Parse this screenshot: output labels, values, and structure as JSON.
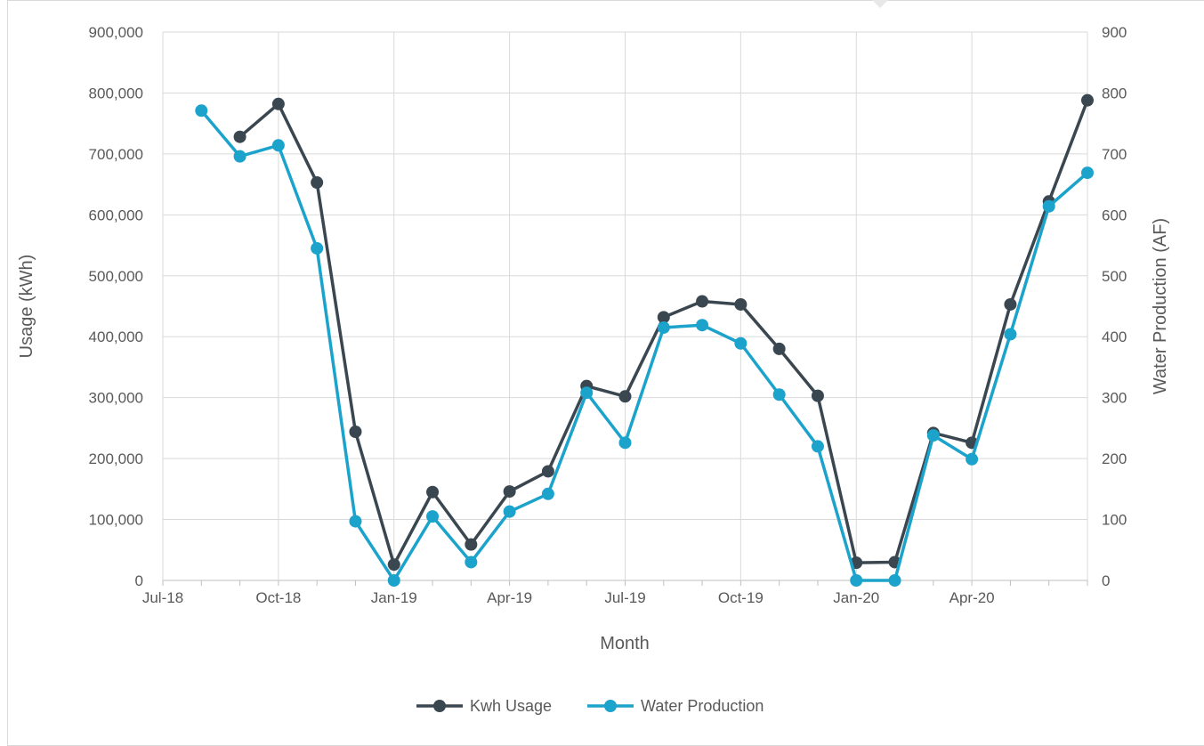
{
  "chart_data": {
    "type": "line",
    "title": "",
    "xlabel": "Month",
    "ylabel": "Usage (kWh)",
    "y2label": "Water Production (AF)",
    "x_tick_labels": [
      "Jul-18",
      "Oct-18",
      "Jan-19",
      "Apr-19",
      "Jul-19",
      "Oct-19",
      "Jan-20",
      "Apr-20"
    ],
    "x_range": [
      "2018-07",
      "2020-07"
    ],
    "x": [
      "2018-08",
      "2018-09",
      "2018-10",
      "2018-11",
      "2018-12",
      "2019-01",
      "2019-02",
      "2019-03",
      "2019-04",
      "2019-05",
      "2019-06",
      "2019-07",
      "2019-08",
      "2019-09",
      "2019-10",
      "2019-11",
      "2019-12",
      "2020-01",
      "2020-02",
      "2020-03",
      "2020-04",
      "2020-05",
      "2020-06",
      "2020-07"
    ],
    "ylim": [
      0,
      900000
    ],
    "y2lim": [
      0,
      900
    ],
    "y_ticks": [
      "0",
      "100,000",
      "200,000",
      "300,000",
      "400,000",
      "500,000",
      "600,000",
      "700,000",
      "800,000",
      "900,000"
    ],
    "y2_ticks": [
      "0",
      "100",
      "200",
      "300",
      "400",
      "500",
      "600",
      "700",
      "800",
      "900"
    ],
    "grid": true,
    "legend_position": "bottom",
    "series": [
      {
        "name": "Kwh Usage",
        "axis": "left",
        "color": "#3a4750",
        "values": [
          null,
          728000,
          782000,
          653000,
          244000,
          26000,
          145000,
          59000,
          146000,
          179000,
          319000,
          302000,
          432000,
          458000,
          453000,
          380000,
          303000,
          29000,
          30000,
          242000,
          226000,
          453000,
          622000,
          788000
        ]
      },
      {
        "name": "Water Production",
        "axis": "right",
        "color": "#1ba3cc",
        "values": [
          771,
          696,
          714,
          545,
          97,
          0,
          105,
          30,
          113,
          142,
          308,
          226,
          415,
          419,
          389,
          305,
          220,
          0,
          0,
          238,
          199,
          404,
          614,
          669
        ]
      }
    ]
  }
}
